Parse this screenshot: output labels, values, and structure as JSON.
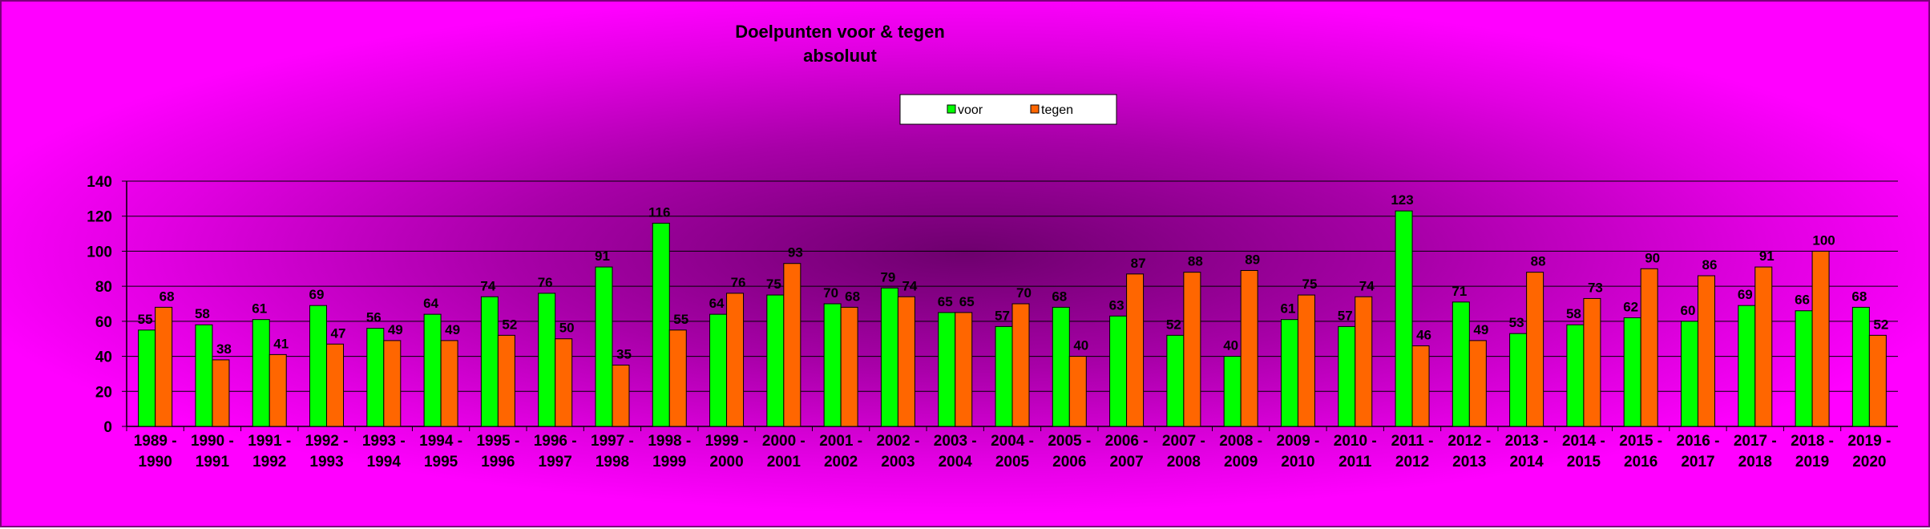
{
  "chart_data": {
    "type": "bar",
    "title": [
      "Doelpunten voor & tegen",
      "absoluut"
    ],
    "xlabel": "",
    "ylabel": "",
    "ylim": [
      0,
      140
    ],
    "yticks": [
      0,
      20,
      40,
      60,
      80,
      100,
      120,
      140
    ],
    "grid": true,
    "legend_position": "top-center",
    "categories": [
      [
        "1989 -",
        "1990"
      ],
      [
        "1990 -",
        "1991"
      ],
      [
        "1991 -",
        "1992"
      ],
      [
        "1992 -",
        "1993"
      ],
      [
        "1993 -",
        "1994"
      ],
      [
        "1994 -",
        "1995"
      ],
      [
        "1995 -",
        "1996"
      ],
      [
        "1996 -",
        "1997"
      ],
      [
        "1997 -",
        "1998"
      ],
      [
        "1998 -",
        "1999"
      ],
      [
        "1999 -",
        "2000"
      ],
      [
        "2000 -",
        "2001"
      ],
      [
        "2001 -",
        "2002"
      ],
      [
        "2002 -",
        "2003"
      ],
      [
        "2003 -",
        "2004"
      ],
      [
        "2004 -",
        "2005"
      ],
      [
        "2005 -",
        "2006"
      ],
      [
        "2006 -",
        "2007"
      ],
      [
        "2007 -",
        "2008"
      ],
      [
        "2008 -",
        "2009"
      ],
      [
        "2009 -",
        "2010"
      ],
      [
        "2010 -",
        "2011"
      ],
      [
        "2011 -",
        "2012"
      ],
      [
        "2012 -",
        "2013"
      ],
      [
        "2013 -",
        "2014"
      ],
      [
        "2014 -",
        "2015"
      ],
      [
        "2015 -",
        "2016"
      ],
      [
        "2016 -",
        "2017"
      ],
      [
        "2017 -",
        "2018"
      ],
      [
        "2018 -",
        "2019"
      ],
      [
        "2019 -",
        "2020"
      ]
    ],
    "series": [
      {
        "name": "voor",
        "color": "#00ff00",
        "values": [
          55,
          58,
          61,
          69,
          56,
          64,
          74,
          76,
          91,
          116,
          64,
          75,
          70,
          79,
          65,
          57,
          68,
          63,
          52,
          40,
          61,
          57,
          123,
          71,
          53,
          58,
          62,
          60,
          69,
          66,
          68
        ]
      },
      {
        "name": "tegen",
        "color": "#ff6600",
        "values": [
          68,
          38,
          41,
          47,
          49,
          49,
          52,
          50,
          35,
          55,
          76,
          93,
          68,
          74,
          65,
          70,
          40,
          87,
          88,
          89,
          75,
          74,
          46,
          49,
          88,
          73,
          90,
          86,
          91,
          100,
          52
        ]
      }
    ],
    "colors": {
      "gridline": "#000000",
      "bar_outline": "#000000",
      "legend_bg": "#ffffff"
    }
  }
}
